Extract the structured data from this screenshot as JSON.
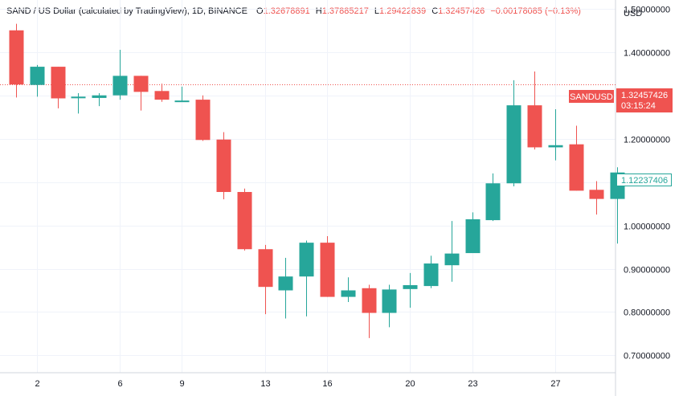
{
  "legend": {
    "symbol": "SAND / US Dollar (calculated by TradingView), 1D, BINANCE",
    "o_key": "O",
    "o_val": "1.32678891",
    "h_key": "H",
    "h_val": "1.37885217",
    "l_key": "L",
    "l_val": "1.29422839",
    "c_key": "C",
    "c_val": "1.32457426",
    "change": "−0.00178085 (−0.13%)"
  },
  "price_axis": {
    "currency": "USD"
  },
  "badges": {
    "symbol_tag": "SANDUSD",
    "last_price": "1.32457426",
    "countdown": "03:15:24",
    "marker_price": "1.12237406"
  },
  "colors": {
    "up": "#26a69a",
    "down": "#ef5350",
    "grid": "#f0f3fa",
    "axis_text": "#131722"
  },
  "chart_data": {
    "type": "candlestick",
    "title": "SAND / US Dollar (calculated by TradingView), 1D, BINANCE",
    "ylabel": "USD",
    "ylim": [
      0.66,
      1.52
    ],
    "y_ticks": [
      "0.70000000",
      "0.80000000",
      "0.90000000",
      "1.00000000",
      "1.10000000",
      "1.20000000",
      "1.30000000",
      "1.40000000",
      "1.50000000"
    ],
    "x_tick_labels": [
      {
        "label": "2",
        "index": 1
      },
      {
        "label": "6",
        "index": 5
      },
      {
        "label": "9",
        "index": 8
      },
      {
        "label": "13",
        "index": 12
      },
      {
        "label": "16",
        "index": 15
      },
      {
        "label": "20",
        "index": 19
      },
      {
        "label": "23",
        "index": 22
      },
      {
        "label": "27",
        "index": 26
      }
    ],
    "last_price": 1.32457426,
    "marker_price": 1.12237406,
    "candles": [
      {
        "o": 1.45,
        "h": 1.465,
        "l": 1.295,
        "c": 1.325
      },
      {
        "o": 1.324,
        "h": 1.37,
        "l": 1.297,
        "c": 1.366
      },
      {
        "o": 1.366,
        "h": 1.366,
        "l": 1.27,
        "c": 1.293
      },
      {
        "o": 1.294,
        "h": 1.305,
        "l": 1.258,
        "c": 1.297
      },
      {
        "o": 1.294,
        "h": 1.305,
        "l": 1.275,
        "c": 1.3
      },
      {
        "o": 1.3,
        "h": 1.405,
        "l": 1.29,
        "c": 1.345
      },
      {
        "o": 1.345,
        "h": 1.345,
        "l": 1.265,
        "c": 1.308
      },
      {
        "o": 1.31,
        "h": 1.327,
        "l": 1.285,
        "c": 1.29
      },
      {
        "o": 1.288,
        "h": 1.32,
        "l": 1.285,
        "c": 1.288
      },
      {
        "o": 1.29,
        "h": 1.3,
        "l": 1.195,
        "c": 1.197
      },
      {
        "o": 1.198,
        "h": 1.215,
        "l": 1.06,
        "c": 1.077
      },
      {
        "o": 1.077,
        "h": 1.085,
        "l": 0.942,
        "c": 0.945
      },
      {
        "o": 0.945,
        "h": 0.955,
        "l": 0.795,
        "c": 0.858
      },
      {
        "o": 0.85,
        "h": 0.925,
        "l": 0.785,
        "c": 0.882
      },
      {
        "o": 0.882,
        "h": 0.965,
        "l": 0.79,
        "c": 0.96
      },
      {
        "o": 0.96,
        "h": 0.975,
        "l": 0.835,
        "c": 0.835
      },
      {
        "o": 0.835,
        "h": 0.88,
        "l": 0.823,
        "c": 0.85
      },
      {
        "o": 0.855,
        "h": 0.863,
        "l": 0.74,
        "c": 0.798
      },
      {
        "o": 0.798,
        "h": 0.863,
        "l": 0.765,
        "c": 0.852
      },
      {
        "o": 0.853,
        "h": 0.89,
        "l": 0.81,
        "c": 0.862
      },
      {
        "o": 0.86,
        "h": 0.93,
        "l": 0.855,
        "c": 0.912
      },
      {
        "o": 0.908,
        "h": 1.01,
        "l": 0.87,
        "c": 0.935
      },
      {
        "o": 0.936,
        "h": 1.03,
        "l": 0.937,
        "c": 1.014
      },
      {
        "o": 1.012,
        "h": 1.12,
        "l": 1.01,
        "c": 1.097
      },
      {
        "o": 1.097,
        "h": 1.335,
        "l": 1.09,
        "c": 1.277
      },
      {
        "o": 1.277,
        "h": 1.355,
        "l": 1.175,
        "c": 1.18
      },
      {
        "o": 1.18,
        "h": 1.268,
        "l": 1.15,
        "c": 1.185
      },
      {
        "o": 1.187,
        "h": 1.23,
        "l": 1.08,
        "c": 1.08
      },
      {
        "o": 1.082,
        "h": 1.102,
        "l": 1.025,
        "c": 1.061
      },
      {
        "o": 1.061,
        "h": 1.134,
        "l": 0.958,
        "c": 1.122
      }
    ]
  }
}
